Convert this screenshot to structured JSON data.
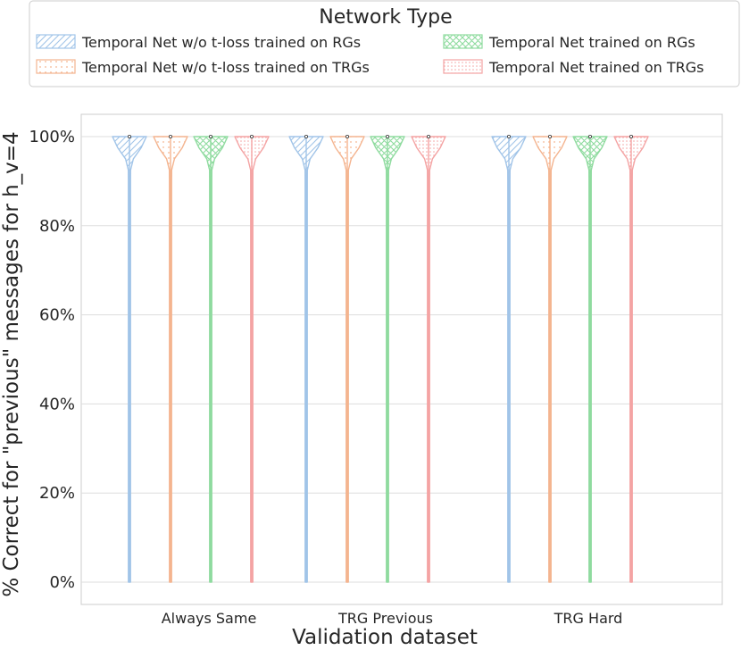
{
  "chart_data": {
    "type": "violin",
    "xlabel": "Validation dataset",
    "ylabel": "% Correct for \"previous\" messages for h_v=4",
    "ylim": [
      0,
      100
    ],
    "yticks": [
      "0%",
      "20%",
      "40%",
      "60%",
      "80%",
      "100%"
    ],
    "ytick_values": [
      0,
      20,
      40,
      60,
      80,
      100
    ],
    "grid": true,
    "categories": [
      "Always Same",
      "TRG Previous",
      "TRG Hard"
    ],
    "legend": {
      "title": "Network Type",
      "placement": "top-center",
      "columns": 2
    },
    "series": [
      {
        "name": "Temporal Net w/o t-loss trained on RGs",
        "color": "#a1c4e8",
        "hatch": "diagonal",
        "median": [
          100,
          100,
          100
        ],
        "min": [
          0,
          0,
          0
        ],
        "max": [
          100,
          100,
          100
        ]
      },
      {
        "name": "Temporal Net w/o t-loss trained on TRGs",
        "color": "#f4b48f",
        "hatch": "dots",
        "median": [
          100,
          100,
          100
        ],
        "min": [
          0,
          0,
          0
        ],
        "max": [
          100,
          100,
          100
        ]
      },
      {
        "name": "Temporal Net trained on RGs",
        "color": "#8fdb9f",
        "hatch": "crosshatch",
        "median": [
          100,
          100,
          100
        ],
        "min": [
          0,
          0,
          0
        ],
        "max": [
          100,
          100,
          100
        ]
      },
      {
        "name": "Temporal Net trained on TRGs",
        "color": "#f4a3a3",
        "hatch": "dense-dots",
        "median": [
          100,
          100,
          100
        ],
        "min": [
          0,
          0,
          0
        ],
        "max": [
          100,
          100,
          100
        ]
      }
    ]
  }
}
